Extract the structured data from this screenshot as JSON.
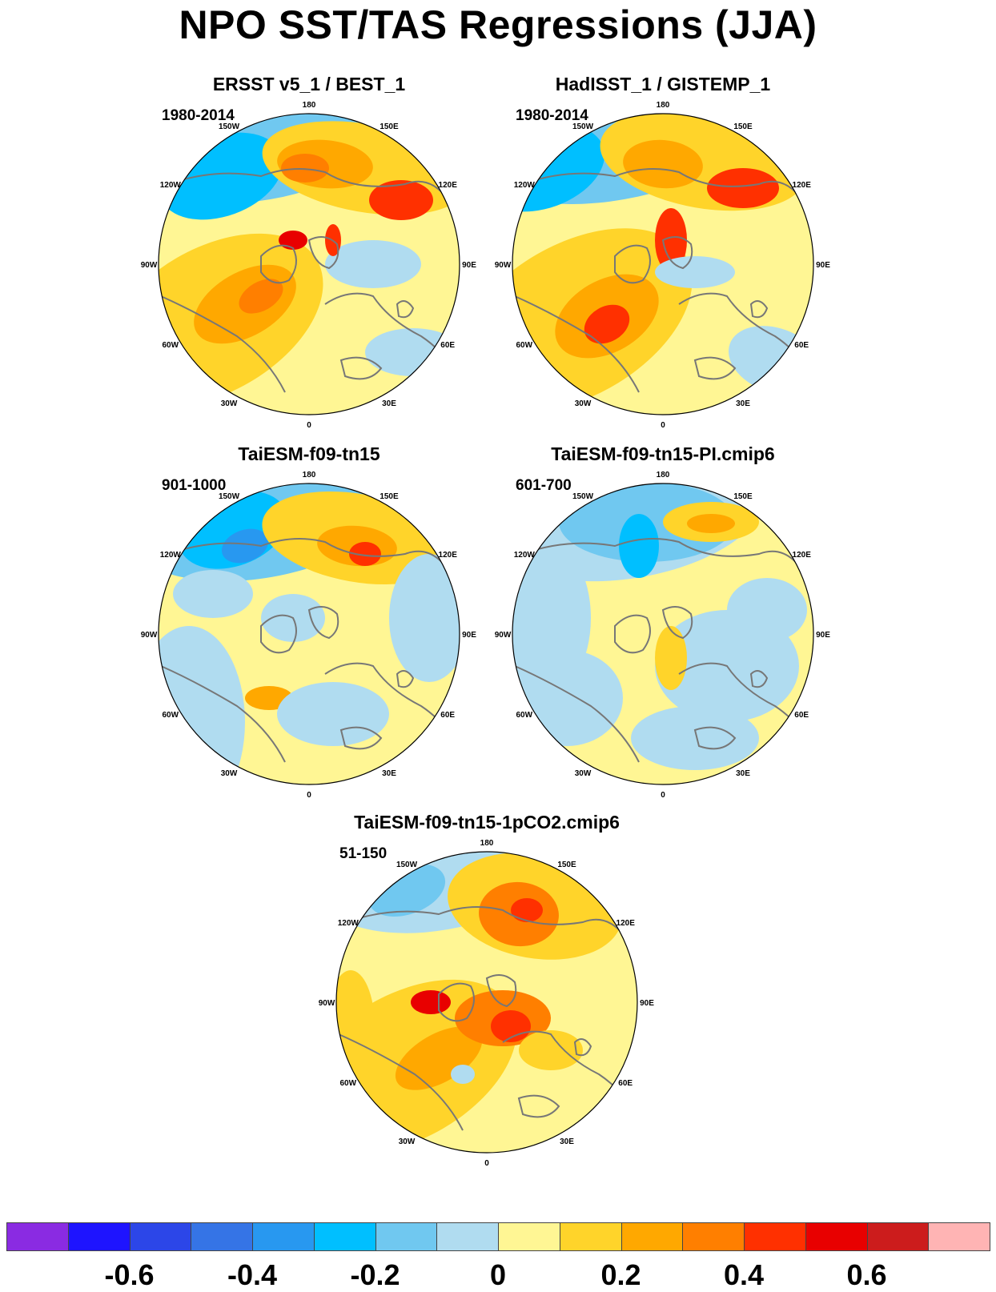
{
  "title": "NPO SST/TAS Regressions (JJA)",
  "panels": [
    {
      "title": "ERSST v5_1 / BEST_1",
      "years": "1980-2014",
      "variant": "obs1"
    },
    {
      "title": "HadISST_1 / GISTEMP_1",
      "years": "1980-2014",
      "variant": "obs2"
    },
    {
      "title": "TaiESM-f09-tn15",
      "years": "901-1000",
      "variant": "m1"
    },
    {
      "title": "TaiESM-f09-tn15-PI.cmip6",
      "years": "601-700",
      "variant": "m2"
    },
    {
      "title": "TaiESM-f09-tn15-1pCO2.cmip6",
      "years": "51-150",
      "variant": "m3"
    }
  ],
  "lon_labels": [
    "180",
    "150E",
    "120E",
    "90E",
    "60E",
    "30E",
    "0",
    "30W",
    "60W",
    "90W",
    "120W",
    "150W"
  ],
  "colorbar": {
    "colors": [
      "#8a2be2",
      "#1e14ff",
      "#2c46e8",
      "#3574e6",
      "#2898f0",
      "#00bfff",
      "#70c8f0",
      "#b0dcf0",
      "#fff694",
      "#ffd42a",
      "#ffa800",
      "#ff7f00",
      "#ff3000",
      "#e80000",
      "#cc1c1c",
      "#ffb4b4"
    ],
    "labels": [
      "-0.6",
      "-0.4",
      "-0.2",
      "0",
      "0.2",
      "0.4",
      "0.6"
    ]
  }
}
